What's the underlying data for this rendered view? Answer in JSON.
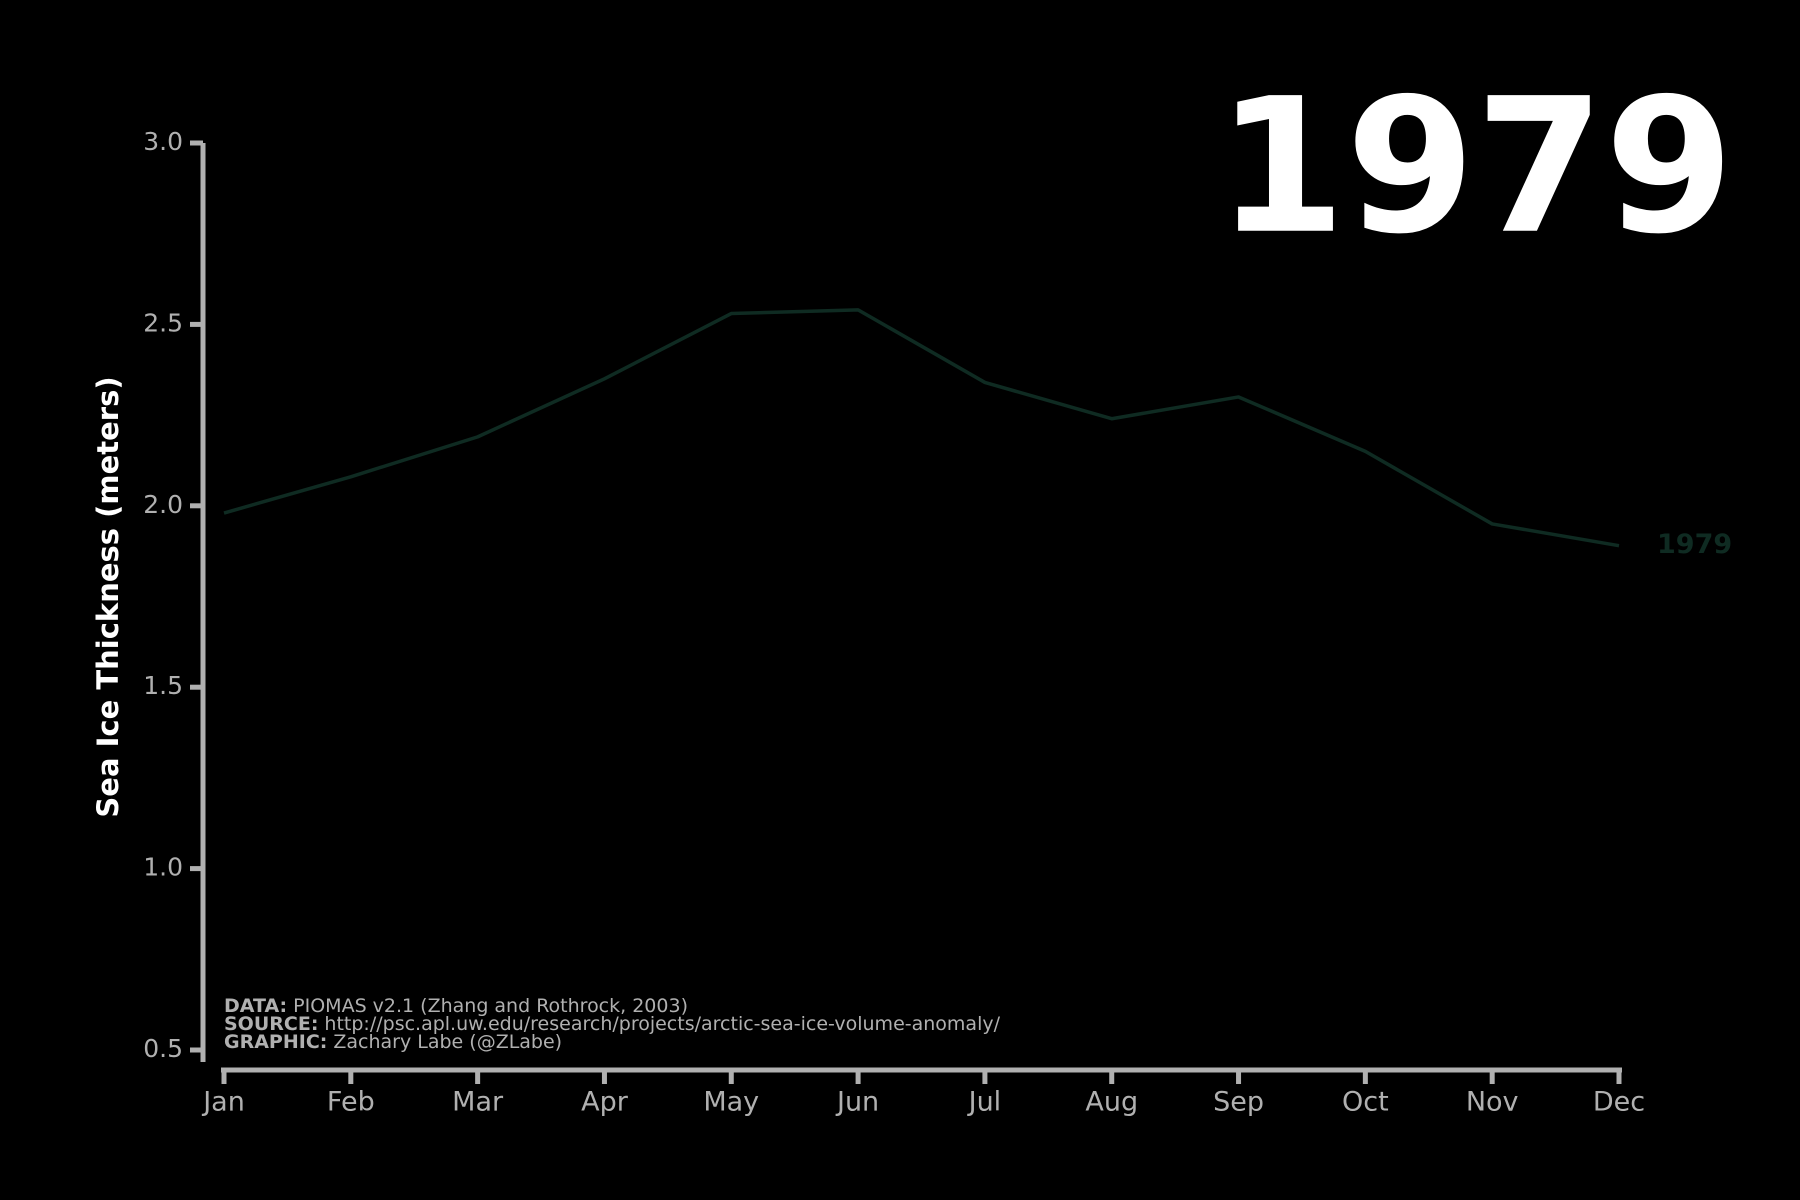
{
  "chart_data": {
    "type": "line",
    "title": "1979",
    "y_label": "Sea Ice Thickness (meters)",
    "categories": [
      "Jan",
      "Feb",
      "Mar",
      "Apr",
      "May",
      "Jun",
      "Jul",
      "Aug",
      "Sep",
      "Oct",
      "Nov",
      "Dec"
    ],
    "series": [
      {
        "name": "1979",
        "color": "#0f2b22",
        "values": [
          1.98,
          2.08,
          2.19,
          2.35,
          2.53,
          2.54,
          2.34,
          2.24,
          2.3,
          2.15,
          1.95,
          1.89
        ]
      }
    ],
    "ylim": [
      0.5,
      3.0
    ],
    "yticks": [
      0.5,
      {
        "value": 1,
        "label": "1.0"
      },
      1.5,
      {
        "value": 2,
        "label": "2.0"
      },
      2.5,
      {
        "value": 3,
        "label": "3.0"
      }
    ],
    "axis_color": "#b0b0b0",
    "credits": [
      {
        "label": "DATA:",
        "text": "PIOMAS v2.1 (Zhang and Rothrock, 2003)"
      },
      {
        "label": "SOURCE:",
        "text": "http://psc.apl.uw.edu/research/projects/arctic-sea-ice-volume-anomaly/"
      },
      {
        "label": "GRAPHIC:",
        "text": "Zachary Labe (@ZLabe)"
      }
    ]
  }
}
